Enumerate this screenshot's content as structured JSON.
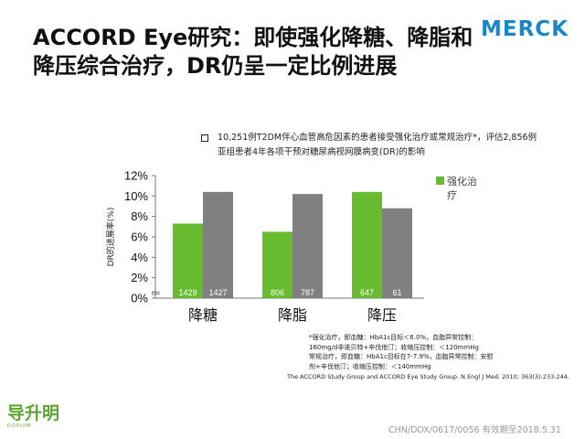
{
  "slide": {
    "title_line1": "ACCORD Eye研究：即使强化降糖、降脂和",
    "title_line2": "降压综合治疗，DR仍呈一定比例进展",
    "logo": "MERCK",
    "description_line1": "10,251例T2DM伴心血管高危因素的患者接受强化治疗或常规治疗*，评估2,856例",
    "description_line2": "亚组患者4年各项干预对糖尿病视网膜病变(DR)的影响",
    "footnote_lines": [
      "*强化治疗，即血糖：HbA1c目标＜6.0%，血脂异常控制：",
      "160mg/d非诺贝特+辛伐他汀；收缩压控制：＜120mmHg",
      " 常规治疗，即血糖：HbA1c目标在7-7.9%，血脂异常控制：安慰",
      "剂+辛伐他汀；收缩压控制：＜140mmHg"
    ],
    "reference": "The ACCORD  Study Group and ACCORD  Eye Study Group. N Engl J Med. 2010; 363(3):233-244.",
    "brand_name": "导升明",
    "brand_sub": "DOXIUM",
    "document_code": "CHN/DOX/0617/0056  有效期至2018.5.31"
  },
  "chart_data": {
    "type": "bar",
    "categories": [
      "降糖",
      "降脂",
      "降压"
    ],
    "series": [
      {
        "name": "强化治疗",
        "color": "#66bb2e",
        "values": [
          7.3,
          6.5,
          10.4
        ],
        "n": [
          "1429",
          "806",
          "647"
        ]
      },
      {
        "name": "",
        "color": "#808080",
        "values": [
          10.4,
          10.2,
          8.8
        ],
        "n": [
          "1427",
          "787",
          "61"
        ]
      }
    ],
    "n_prefix": "n=",
    "ylabel": "DR的进展率(%)",
    "ylim": [
      0,
      12
    ],
    "yticks": [
      "0%",
      "2%",
      "4%",
      "6%",
      "8%",
      "10%",
      "12%"
    ],
    "grid": false,
    "legend_position": "right"
  }
}
